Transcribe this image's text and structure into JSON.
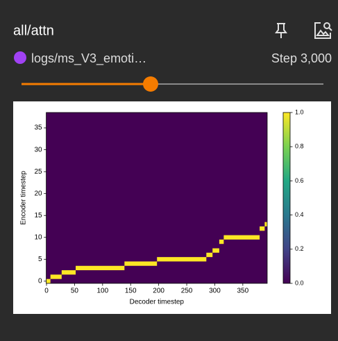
{
  "header": {
    "title": "all/attn"
  },
  "run": {
    "name": "logs/ms_V3_emoti…",
    "color": "#a142f4",
    "step": "Step 3,000"
  },
  "chart_data": {
    "type": "alignment",
    "x_label": "Decoder timestep",
    "y_label": "Encoder timestep",
    "xlim": [
      -0.5,
      393.5
    ],
    "ylim": [
      -0.5,
      38.5
    ],
    "xticks": [
      0,
      50,
      100,
      150,
      200,
      250,
      300,
      350
    ],
    "yticks": [
      0,
      5,
      10,
      15,
      20,
      25,
      30,
      35
    ],
    "encoder_steps": [
      0,
      1,
      2,
      3,
      4,
      5,
      6,
      7,
      9,
      10,
      12,
      13
    ],
    "start": [
      0,
      7,
      27,
      52,
      139,
      197,
      285,
      296,
      308,
      316,
      380,
      389
    ],
    "end": [
      7,
      27,
      52,
      139,
      197,
      285,
      296,
      308,
      316,
      380,
      389,
      393.5
    ],
    "background_color": "#440154",
    "alignment_color": "#fde725",
    "clim": [
      0,
      1
    ],
    "colorbar_colors": [
      "#440154",
      "#414487",
      "#2a788e",
      "#22a884",
      "#7ad151",
      "#fde725"
    ],
    "colorbar_ticks": [
      {
        "value": 0,
        "label": "0.0"
      },
      {
        "value": 0.2,
        "label": "0.2"
      },
      {
        "value": 0.4,
        "label": "0.4"
      },
      {
        "value": 0.6,
        "label": "0.6"
      },
      {
        "value": 0.8,
        "label": "0.8"
      },
      {
        "value": 1,
        "label": "1.0"
      }
    ]
  }
}
